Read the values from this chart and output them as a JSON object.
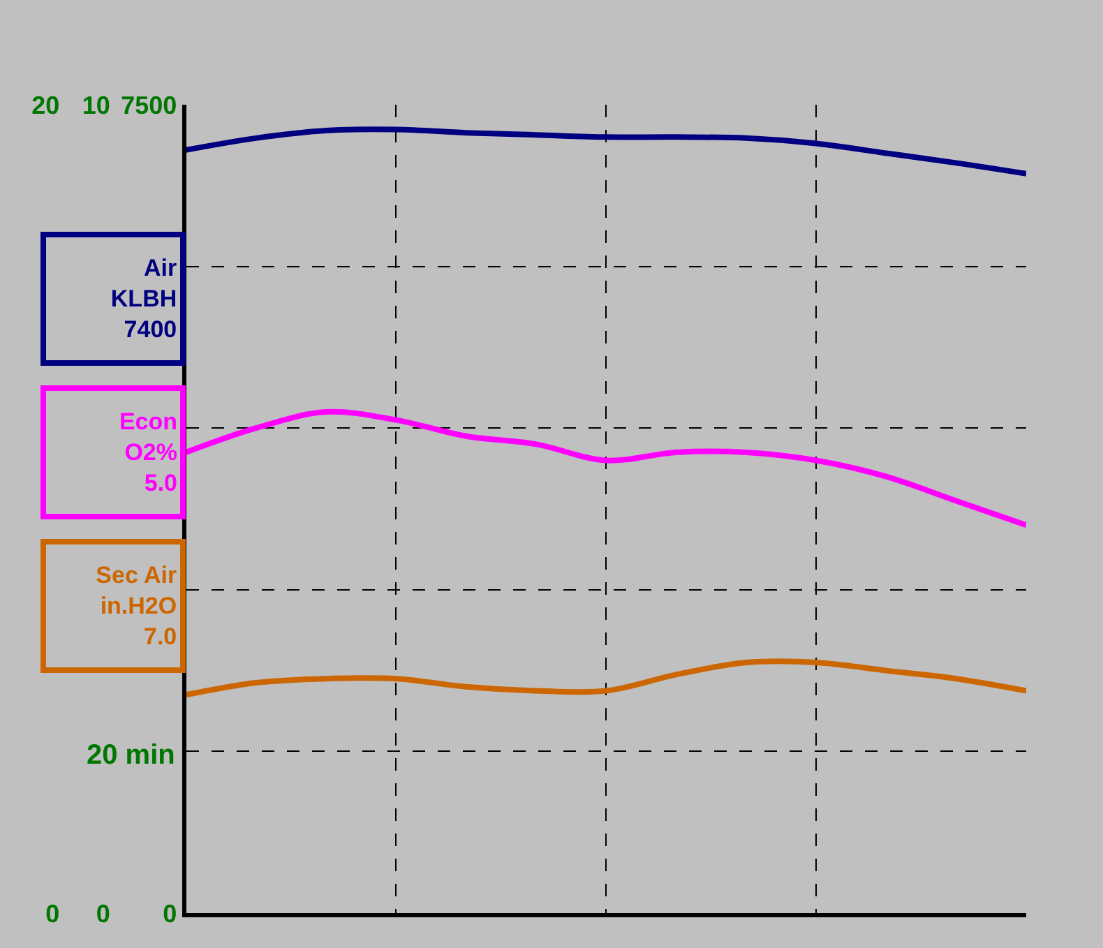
{
  "chart_data": {
    "type": "line",
    "categories": [
      null,
      null,
      null,
      null,
      null,
      null,
      null,
      null,
      null,
      null,
      null,
      null,
      null
    ],
    "xlabel": "20 min",
    "series": [
      {
        "name": "Air KLBH",
        "color": "#000080",
        "values": [
          7080,
          7190,
          7260,
          7270,
          7240,
          7220,
          7200,
          7200,
          7190,
          7140,
          7050,
          6960,
          6860
        ]
      },
      {
        "name": "Econ O2%",
        "color": "#ff00ff",
        "axis": "y2",
        "values": [
          5.7,
          6.0,
          6.2,
          6.1,
          5.9,
          5.8,
          5.6,
          5.7,
          5.7,
          5.6,
          5.4,
          5.1,
          4.8
        ]
      },
      {
        "name": "Sec Air in.H2O",
        "color": "#cc6600",
        "axis": "y3",
        "values": [
          5.4,
          5.7,
          5.8,
          5.8,
          5.6,
          5.5,
          5.5,
          5.9,
          6.2,
          6.2,
          6.0,
          5.8,
          5.5
        ]
      }
    ],
    "ylim": [
      0,
      7500
    ],
    "yticks": [
      0,
      7500
    ],
    "y2lim": [
      0,
      10
    ],
    "y2ticks": [
      0,
      10
    ],
    "y3lim": [
      0,
      20
    ],
    "y3ticks": [
      0,
      20
    ],
    "annotations": [
      "7400",
      "5.0",
      "7.0"
    ],
    "grid": true,
    "legend": "left",
    "line_style": "solid",
    "marker": "none"
  }
}
